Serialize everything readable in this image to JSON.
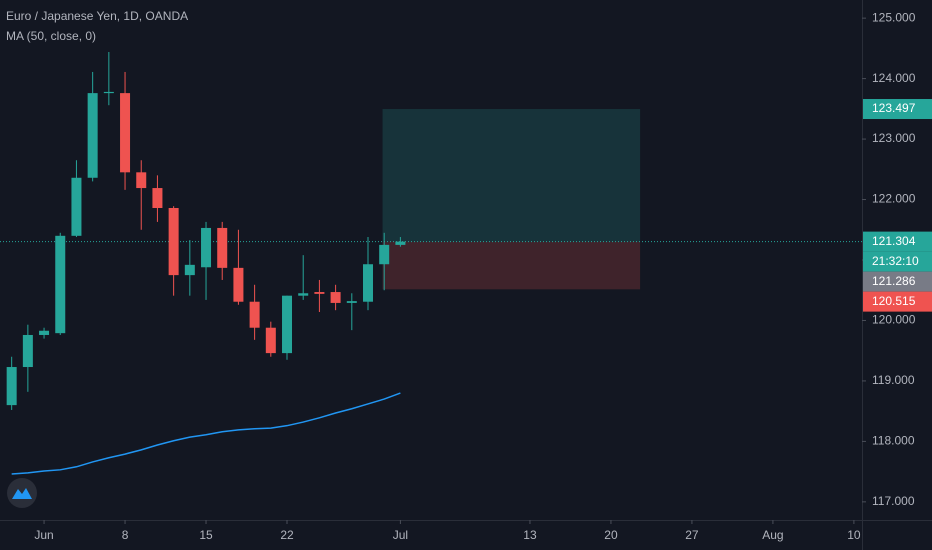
{
  "chart_data": {
    "type": "candlestick",
    "title": "Euro / Japanese Yen, 1D, OANDA",
    "x": [
      -2,
      -1,
      0,
      1,
      2,
      3,
      4,
      5,
      6,
      7,
      8,
      9,
      10,
      11,
      12,
      13,
      14,
      15,
      16,
      17,
      18,
      19,
      20,
      21,
      22
    ],
    "open": [
      118.6,
      119.23,
      119.76,
      119.79,
      121.4,
      122.36,
      123.76,
      123.76,
      122.45,
      122.19,
      121.86,
      120.75,
      120.88,
      121.53,
      120.87,
      120.31,
      119.88,
      119.46,
      120.41,
      120.47,
      120.47,
      120.29,
      120.31,
      120.93,
      121.25
    ],
    "high": [
      119.4,
      119.93,
      119.88,
      121.45,
      122.65,
      124.11,
      124.44,
      124.11,
      122.65,
      122.4,
      121.89,
      121.33,
      121.63,
      121.63,
      121.5,
      120.59,
      119.98,
      120.41,
      121.08,
      120.67,
      120.59,
      120.45,
      121.38,
      121.45,
      121.38
    ],
    "low": [
      118.52,
      118.82,
      119.7,
      119.76,
      121.38,
      122.3,
      123.56,
      122.16,
      121.5,
      121.63,
      120.41,
      120.41,
      120.34,
      120.67,
      120.26,
      119.68,
      119.4,
      119.35,
      120.34,
      120.14,
      120.17,
      119.84,
      120.17,
      120.5,
      121.22
    ],
    "close": [
      119.23,
      119.76,
      119.83,
      121.4,
      122.36,
      123.76,
      123.78,
      122.45,
      122.19,
      121.86,
      120.75,
      120.92,
      121.53,
      120.87,
      120.31,
      119.88,
      119.46,
      120.41,
      120.45,
      120.44,
      120.29,
      120.32,
      120.93,
      121.25,
      121.304
    ],
    "up_color": "#26a69a",
    "down_color": "#ef5350",
    "ma": {
      "name": "MA (50, close, 0)",
      "color": "#2196f3",
      "values": [
        117.46,
        117.48,
        117.51,
        117.53,
        117.58,
        117.66,
        117.73,
        117.79,
        117.86,
        117.94,
        118.01,
        118.07,
        118.11,
        118.16,
        118.19,
        118.21,
        118.22,
        118.26,
        118.32,
        118.39,
        118.47,
        118.54,
        118.62,
        118.7,
        118.8
      ]
    },
    "xlim": [
      -2.72,
      50.5
    ],
    "ylim": [
      116.7,
      125.3
    ],
    "xticks": [
      {
        "value": 0,
        "label": "Jun"
      },
      {
        "value": 5,
        "label": "8"
      },
      {
        "value": 10,
        "label": "15"
      },
      {
        "value": 15,
        "label": "22"
      },
      {
        "value": 22,
        "label": "Jul"
      },
      {
        "value": 30,
        "label": "13"
      },
      {
        "value": 35,
        "label": "20"
      },
      {
        "value": 40,
        "label": "27"
      },
      {
        "value": 45,
        "label": "Aug"
      },
      {
        "value": 50,
        "label": "10"
      }
    ],
    "yticks": [
      {
        "value": 125,
        "label": "125.000"
      },
      {
        "value": 124,
        "label": "124.000"
      },
      {
        "value": 123,
        "label": "123.000"
      },
      {
        "value": 122,
        "label": "122.000"
      },
      {
        "value": 121,
        "label": "121.000"
      },
      {
        "value": 120,
        "label": "120.000"
      },
      {
        "value": 119,
        "label": "119.000"
      },
      {
        "value": 118,
        "label": "118.000"
      },
      {
        "value": 117,
        "label": "117.000"
      }
    ],
    "position": {
      "x_start": 20.9,
      "x_end": 36.8,
      "target": 123.497,
      "entry": 121.304,
      "stop": 120.515
    },
    "countdown": "21:32:10",
    "other_price": 121.286
  }
}
